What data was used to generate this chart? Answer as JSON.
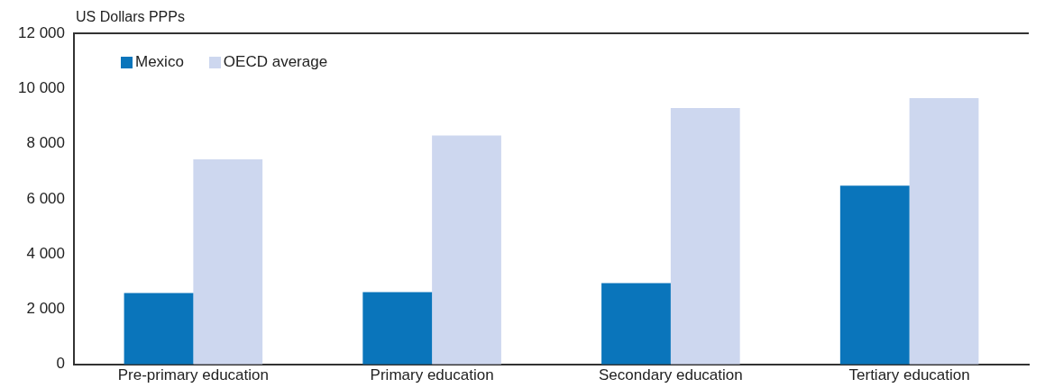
{
  "chart_data": {
    "type": "bar",
    "ylabel": "US Dollars PPPs",
    "categories": [
      "Pre-primary education",
      "Primary education",
      "Secondary education",
      "Tertiary education"
    ],
    "series": [
      {
        "name": "Mexico",
        "color": "#0a75bb",
        "values": [
          2590,
          2620,
          2950,
          6480
        ]
      },
      {
        "name": "OECD average",
        "color": "#cdd7ef",
        "values": [
          7430,
          8300,
          9290,
          9650
        ]
      }
    ],
    "ylim": [
      0,
      12000
    ],
    "yticks": [
      {
        "value": 0,
        "label": "0"
      },
      {
        "value": 2000,
        "label": "2 000"
      },
      {
        "value": 4000,
        "label": "4 000"
      },
      {
        "value": 6000,
        "label": "6 000"
      },
      {
        "value": 8000,
        "label": "8 000"
      },
      {
        "value": 10000,
        "label": "10 000"
      },
      {
        "value": 12000,
        "label": "12 000"
      }
    ],
    "legend": "top left"
  }
}
